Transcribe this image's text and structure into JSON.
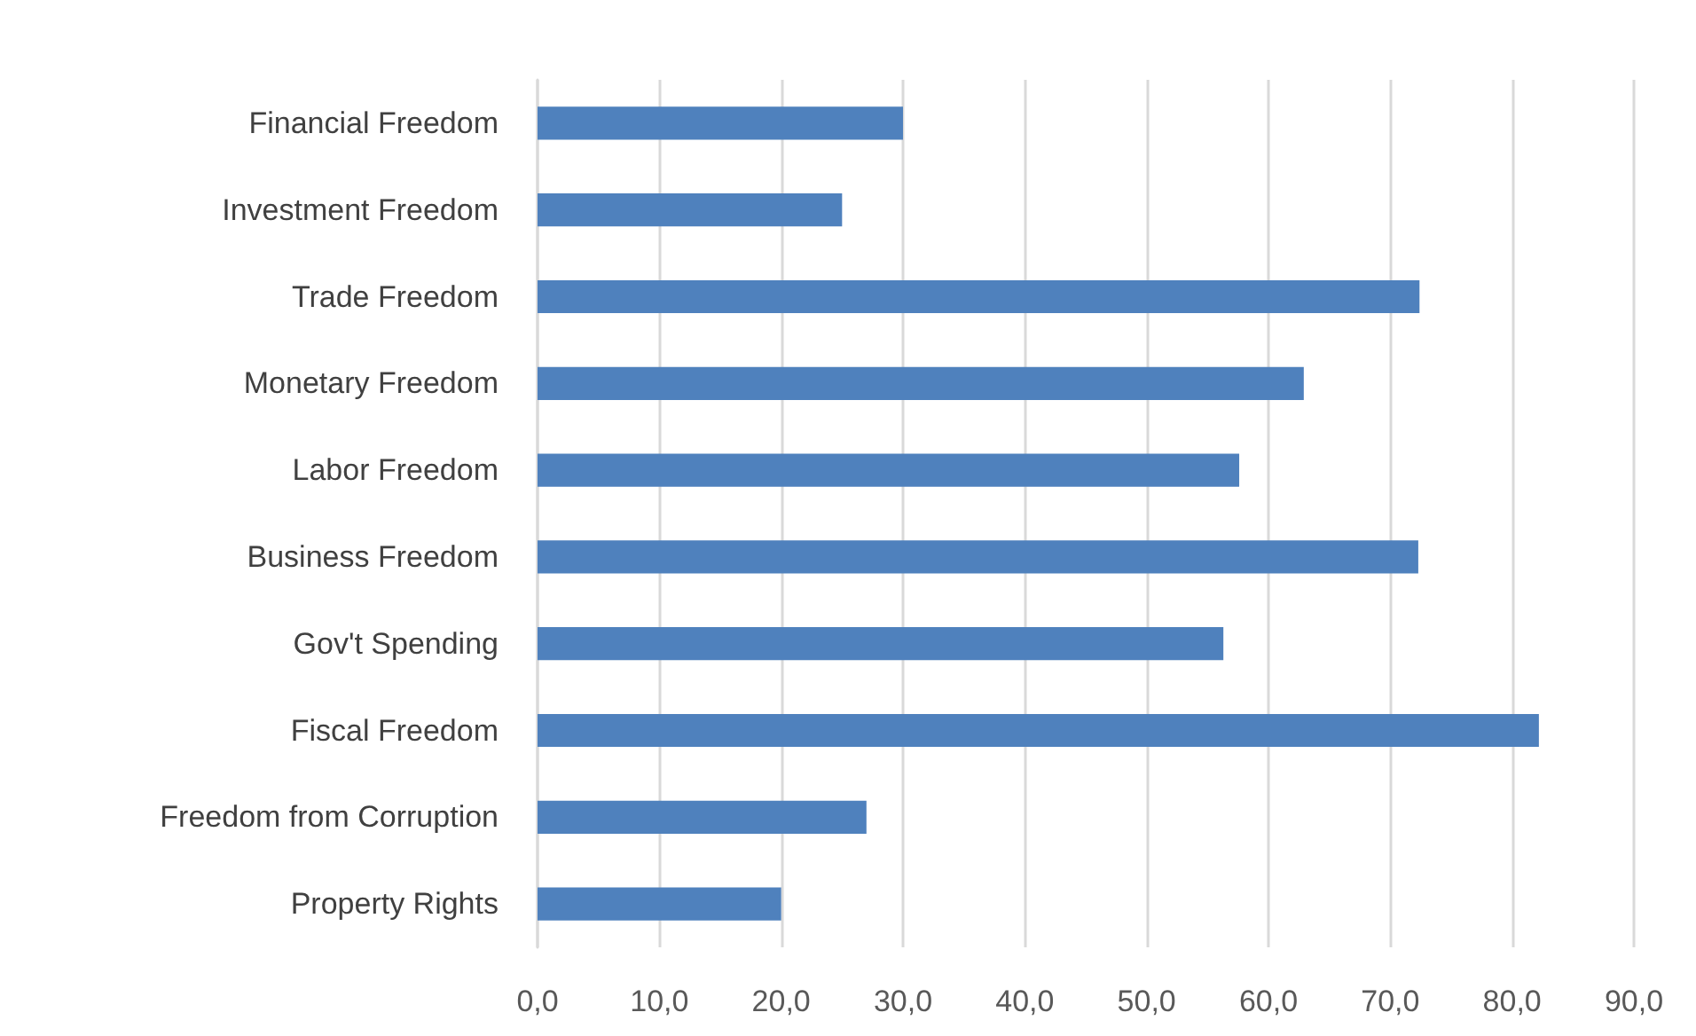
{
  "chart_data": {
    "type": "bar",
    "orientation": "horizontal",
    "categories": [
      "Financial Freedom",
      "Investment Freedom",
      "Trade Freedom",
      "Monetary Freedom",
      "Labor Freedom",
      "Business Freedom",
      "Gov't Spending",
      "Fiscal Freedom",
      "Freedom from Corruption",
      "Property Rights"
    ],
    "values": [
      30.0,
      25.0,
      72.4,
      62.9,
      57.6,
      72.3,
      56.3,
      82.2,
      27.0,
      20.0
    ],
    "color": "#4f81bd",
    "xlim": [
      0,
      90
    ],
    "xticks": [
      {
        "value": 0,
        "label": "0,0"
      },
      {
        "value": 10,
        "label": "10,0"
      },
      {
        "value": 20,
        "label": "20,0"
      },
      {
        "value": 30,
        "label": "30,0"
      },
      {
        "value": 40,
        "label": "40,0"
      },
      {
        "value": 50,
        "label": "50,0"
      },
      {
        "value": 60,
        "label": "60,0"
      },
      {
        "value": 70,
        "label": "70,0"
      },
      {
        "value": 80,
        "label": "80,0"
      },
      {
        "value": 90,
        "label": "90,0"
      }
    ],
    "grid": "x"
  }
}
